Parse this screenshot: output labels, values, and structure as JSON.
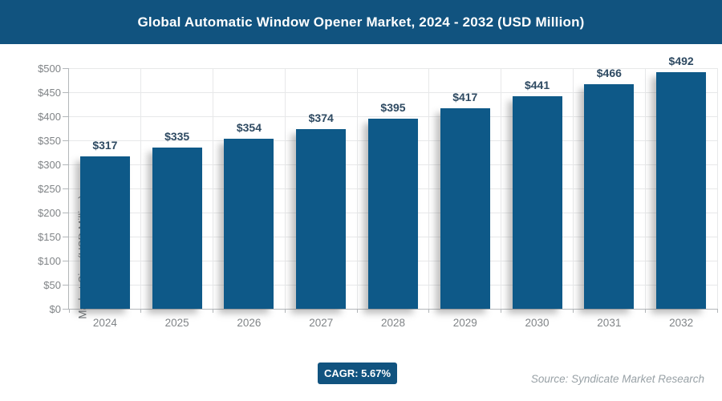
{
  "header": {
    "title": "Global Automatic Window Opener Market, 2024 - 2032 (USD Million)"
  },
  "chart_data": {
    "type": "bar",
    "title": "Global Automatic Window Opener Market, 2024 - 2032 (USD Million)",
    "categories": [
      "2024",
      "2025",
      "2026",
      "2027",
      "2028",
      "2029",
      "2030",
      "2031",
      "2032"
    ],
    "values": [
      317,
      335,
      354,
      374,
      395,
      417,
      441,
      466,
      492
    ],
    "bar_labels": [
      "$317",
      "$335",
      "$354",
      "$374",
      "$395",
      "$417",
      "$441",
      "$466",
      "$492"
    ],
    "xlabel": "",
    "ylabel": "Market Size (USD Million)",
    "ylim": [
      0,
      500
    ],
    "ytick_step": 50,
    "ytick_prefix": "$",
    "grid": true,
    "legend": "none"
  },
  "footer": {
    "cagr_label": "CAGR: 5.67%",
    "source": "Source: Syndicate Market Research"
  },
  "colors": {
    "banner_bg": "#11537f",
    "bar": "#0e5988",
    "badge_bg": "#11537f",
    "value_label": "#2e4a62",
    "tick_label": "#808487",
    "gridline": "#e7e8e9",
    "axis_line": "#b3b7ba"
  }
}
